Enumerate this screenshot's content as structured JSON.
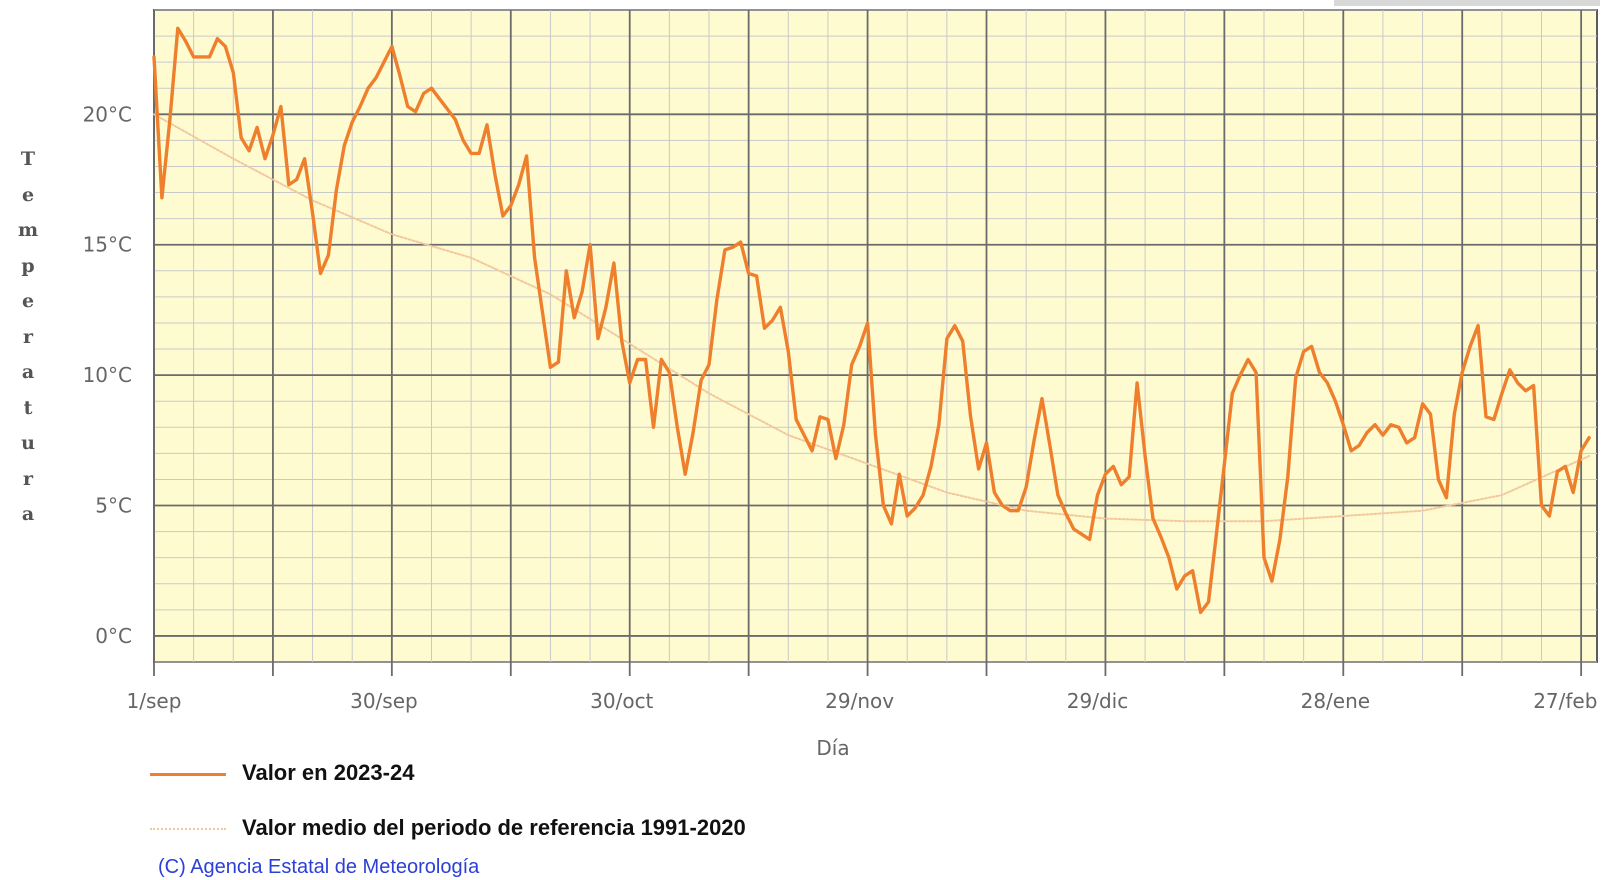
{
  "chart_data": {
    "type": "line",
    "title": "",
    "xlabel": "Día",
    "ylabel": "Temperatura",
    "ylim": [
      -1,
      24
    ],
    "yticks": [
      0,
      5,
      10,
      15,
      20
    ],
    "ytick_labels": [
      "0°C",
      "5°C",
      "10°C",
      "15°C",
      "20°C"
    ],
    "x_start": "1/sep",
    "x_days": 182,
    "xtick_days": [
      0,
      29,
      59,
      89,
      119,
      149,
      179
    ],
    "xtick_labels": [
      "1/sep",
      "30/sep",
      "30/oct",
      "29/nov",
      "29/dic",
      "28/ene",
      "27/feb"
    ],
    "grid": true,
    "legend_position": "bottom-left",
    "series": [
      {
        "name": "Valor en 2023-24",
        "color": "#ee7f2d",
        "style": "solid",
        "x": [
          0,
          1,
          2,
          3,
          4,
          5,
          6,
          7,
          8,
          9,
          10,
          11,
          12,
          13,
          14,
          15,
          16,
          17,
          18,
          19,
          20,
          21,
          22,
          23,
          24,
          25,
          26,
          27,
          28,
          29,
          30,
          31,
          32,
          33,
          34,
          35,
          36,
          37,
          38,
          39,
          40,
          41,
          42,
          43,
          44,
          45,
          46,
          47,
          48,
          49,
          50,
          51,
          52,
          53,
          54,
          55,
          56,
          57,
          58,
          59,
          60,
          61,
          62,
          63,
          64,
          65,
          66,
          67,
          68,
          69,
          70,
          71,
          72,
          73,
          74,
          75,
          76,
          77,
          78,
          79,
          80,
          81,
          82,
          83,
          84,
          85,
          86,
          87,
          88,
          89,
          90,
          91,
          92,
          93,
          94,
          95,
          96,
          97,
          98,
          99,
          100,
          101,
          102,
          103,
          104,
          105,
          106,
          107,
          108,
          109,
          110,
          111,
          112,
          113,
          114,
          115,
          116,
          117,
          118,
          119,
          120,
          121,
          122,
          123,
          124,
          125,
          126,
          127,
          128,
          129,
          130,
          131,
          132,
          133,
          134,
          135,
          136,
          137,
          138,
          139,
          140,
          141,
          142,
          143,
          144,
          145,
          146,
          147,
          148,
          149,
          150,
          151,
          152,
          153,
          154,
          155,
          156,
          157,
          158,
          159,
          160,
          161,
          162,
          163,
          164,
          165,
          166,
          167,
          168,
          169,
          170,
          171,
          172,
          173,
          174,
          175,
          176,
          177,
          178,
          179,
          180,
          181
        ],
        "values": [
          22.2,
          16.8,
          19.8,
          23.3,
          22.8,
          22.2,
          22.2,
          22.2,
          22.9,
          22.6,
          21.6,
          19.1,
          18.6,
          19.5,
          18.3,
          19.2,
          20.3,
          17.3,
          17.5,
          18.3,
          16.2,
          13.9,
          14.6,
          17.1,
          18.8,
          19.7,
          20.3,
          21.0,
          21.4,
          22.0,
          22.6,
          21.5,
          20.3,
          20.1,
          20.8,
          21.0,
          20.6,
          20.2,
          19.8,
          19.0,
          18.5,
          18.5,
          19.6,
          17.7,
          16.1,
          16.5,
          17.3,
          18.4,
          14.5,
          12.4,
          10.3,
          10.5,
          14.0,
          12.2,
          13.2,
          15.0,
          11.4,
          12.6,
          14.3,
          11.3,
          9.7,
          10.6,
          10.6,
          8.0,
          10.6,
          10.1,
          8.0,
          6.2,
          7.8,
          9.8,
          10.4,
          12.9,
          14.8,
          14.9,
          15.1,
          13.9,
          13.8,
          11.8,
          12.1,
          12.6,
          10.9,
          8.3,
          7.7,
          7.1,
          8.4,
          8.3,
          6.8,
          8.1,
          10.4,
          11.1,
          12.0,
          7.7,
          5.0,
          4.3,
          6.2,
          4.6,
          4.9,
          5.4,
          6.5,
          8.1,
          11.4,
          11.9,
          11.3,
          8.4,
          6.4,
          7.4,
          5.5,
          5.0,
          4.8,
          4.8,
          5.7,
          7.5,
          9.1,
          7.3,
          5.4,
          4.7,
          4.1,
          3.9,
          3.7,
          5.4,
          6.2,
          6.5,
          5.8,
          6.1,
          9.7,
          6.9,
          4.5,
          3.8,
          3.0,
          1.8,
          2.3,
          2.5,
          0.9,
          1.3,
          3.9,
          6.6,
          9.3,
          10.0,
          10.6,
          10.1,
          3.0,
          2.1,
          3.7,
          6.1,
          9.9,
          10.9,
          11.1,
          10.1,
          9.7,
          9.0,
          8.1,
          7.1,
          7.3,
          7.8,
          8.1,
          7.7,
          8.1,
          8.0,
          7.4,
          7.6,
          8.9,
          8.5,
          6.0,
          5.3,
          8.5,
          10.1,
          11.1,
          11.9,
          8.4,
          8.3,
          9.3,
          10.2,
          9.7,
          9.4,
          9.6,
          5.0,
          4.6,
          6.3,
          6.5,
          5.5,
          7.1,
          7.6
        ]
      },
      {
        "name": "Valor medio del periodo de referencia 1991-2020",
        "color": "#f2c89e",
        "style": "dotted",
        "x": [
          0,
          10,
          20,
          30,
          40,
          50,
          60,
          70,
          80,
          90,
          100,
          110,
          120,
          130,
          140,
          150,
          160,
          170,
          181
        ],
        "values": [
          20.0,
          18.3,
          16.7,
          15.4,
          14.5,
          13.1,
          11.2,
          9.3,
          7.7,
          6.6,
          5.5,
          4.8,
          4.5,
          4.4,
          4.4,
          4.6,
          4.8,
          5.4,
          6.9
        ]
      }
    ]
  },
  "copyright": "(C) Agencia Estatal de Meteorología"
}
